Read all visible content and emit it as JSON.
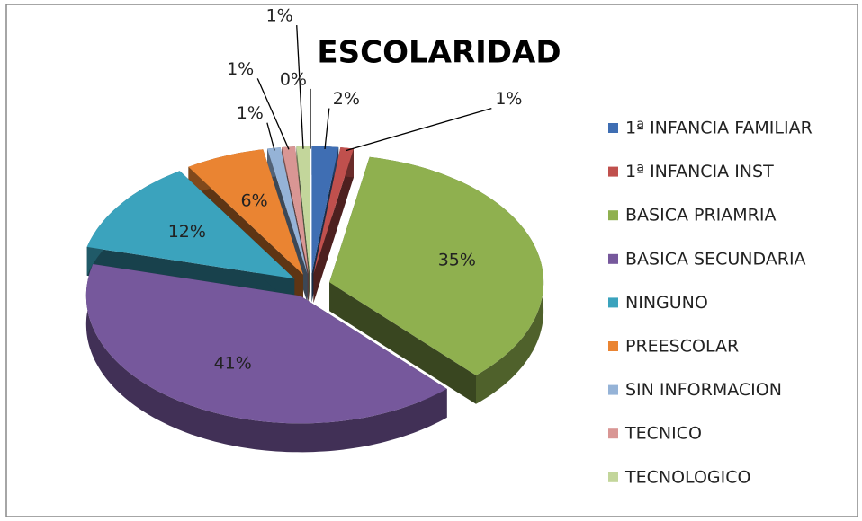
{
  "chart_data": {
    "type": "pie",
    "title": "ESCOLARIDAD",
    "categories": [
      "1ª INFANCIA FAMILIAR",
      "1ª INFANCIA INST",
      "BASICA PRIAMRIA",
      "BASICA SECUNDARIA",
      "NINGUNO",
      "PREESCOLAR",
      "SIN INFORMACION",
      "TECNICO",
      "TECNOLOGICO",
      null
    ],
    "values": [
      2,
      1,
      35,
      41,
      12,
      6,
      1,
      1,
      1,
      0
    ],
    "value_labels": [
      "2%",
      "1%",
      "35%",
      "41%",
      "12%",
      "6%",
      "1%",
      "1%",
      "1%",
      "0%"
    ],
    "colors": [
      "#3f6eb3",
      "#c0504d",
      "#8fb04f",
      "#76589c",
      "#3ba3bd",
      "#ea8432",
      "#95b3d7",
      "#d99694",
      "#c3d69b",
      "#b3a2c7"
    ],
    "legend": "right"
  }
}
